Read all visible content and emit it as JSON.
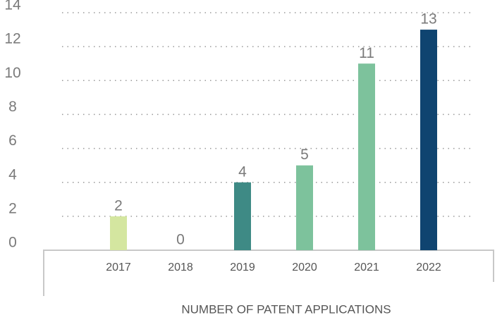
{
  "chart_data": {
    "type": "bar",
    "x_label": "NUMBER OF PATENT APPLICATIONS",
    "categories": [
      "2017",
      "2018",
      "2019",
      "2020",
      "2021",
      "2022"
    ],
    "values": [
      2,
      0,
      4,
      5,
      11,
      13
    ],
    "colors": [
      "#d4e6a0",
      "#c0c0c0",
      "#3e8a85",
      "#7dc29c",
      "#7dc29c",
      "#0f4470"
    ],
    "ylim": [
      0,
      14
    ],
    "yticks": [
      0,
      2,
      4,
      6,
      8,
      10,
      12,
      14
    ],
    "grid": true
  }
}
